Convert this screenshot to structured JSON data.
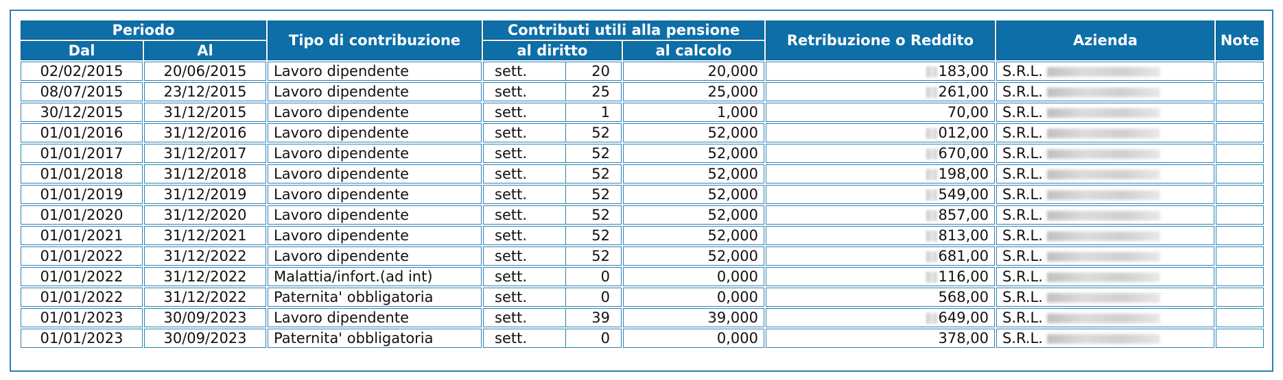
{
  "headers": {
    "periodo": "Periodo",
    "dal": "Dal",
    "al": "Al",
    "tipo": "Tipo di contribuzione",
    "contributi": "Contributi utili alla pensione",
    "al_diritto": "al diritto",
    "al_calcolo": "al calcolo",
    "retribuzione": "Retribuzione o Reddito",
    "azienda": "Azienda",
    "note": "Note"
  },
  "rows": [
    {
      "dal": "02/02/2015",
      "al": "20/06/2015",
      "tipo": "Lavoro dipendente",
      "unita": "sett.",
      "diritto": "20",
      "calcolo": "20,000",
      "retribuzione": "183,00",
      "azienda": "S.R.L.",
      "note": ""
    },
    {
      "dal": "08/07/2015",
      "al": "23/12/2015",
      "tipo": "Lavoro dipendente",
      "unita": "sett.",
      "diritto": "25",
      "calcolo": "25,000",
      "retribuzione": "261,00",
      "azienda": "S.R.L.",
      "note": ""
    },
    {
      "dal": "30/12/2015",
      "al": "31/12/2015",
      "tipo": "Lavoro dipendente",
      "unita": "sett.",
      "diritto": "1",
      "calcolo": "1,000",
      "retribuzione": "70,00",
      "azienda": "S.R.L.",
      "note": ""
    },
    {
      "dal": "01/01/2016",
      "al": "31/12/2016",
      "tipo": "Lavoro dipendente",
      "unita": "sett.",
      "diritto": "52",
      "calcolo": "52,000",
      "retribuzione": "012,00",
      "azienda": "S.R.L.",
      "note": ""
    },
    {
      "dal": "01/01/2017",
      "al": "31/12/2017",
      "tipo": "Lavoro dipendente",
      "unita": "sett.",
      "diritto": "52",
      "calcolo": "52,000",
      "retribuzione": "670,00",
      "azienda": "S.R.L.",
      "note": ""
    },
    {
      "dal": "01/01/2018",
      "al": "31/12/2018",
      "tipo": "Lavoro dipendente",
      "unita": "sett.",
      "diritto": "52",
      "calcolo": "52,000",
      "retribuzione": "198,00",
      "azienda": "S.R.L.",
      "note": ""
    },
    {
      "dal": "01/01/2019",
      "al": "31/12/2019",
      "tipo": "Lavoro dipendente",
      "unita": "sett.",
      "diritto": "52",
      "calcolo": "52,000",
      "retribuzione": "549,00",
      "azienda": "S.R.L.",
      "note": ""
    },
    {
      "dal": "01/01/2020",
      "al": "31/12/2020",
      "tipo": "Lavoro dipendente",
      "unita": "sett.",
      "diritto": "52",
      "calcolo": "52,000",
      "retribuzione": "857,00",
      "azienda": "S.R.L.",
      "note": ""
    },
    {
      "dal": "01/01/2021",
      "al": "31/12/2021",
      "tipo": "Lavoro dipendente",
      "unita": "sett.",
      "diritto": "52",
      "calcolo": "52,000",
      "retribuzione": "813,00",
      "azienda": "S.R.L.",
      "note": ""
    },
    {
      "dal": "01/01/2022",
      "al": "31/12/2022",
      "tipo": "Lavoro dipendente",
      "unita": "sett.",
      "diritto": "52",
      "calcolo": "52,000",
      "retribuzione": "681,00",
      "azienda": "S.R.L.",
      "note": ""
    },
    {
      "dal": "01/01/2022",
      "al": "31/12/2022",
      "tipo": "Malattia/infort.(ad int)",
      "unita": "sett.",
      "diritto": "0",
      "calcolo": "0,000",
      "retribuzione": "116,00",
      "azienda": "S.R.L.",
      "note": ""
    },
    {
      "dal": "01/01/2022",
      "al": "31/12/2022",
      "tipo": "Paternita' obbligatoria",
      "unita": "sett.",
      "diritto": "0",
      "calcolo": "0,000",
      "retribuzione": "568,00",
      "azienda": "S.R.L.",
      "note": ""
    },
    {
      "dal": "01/01/2023",
      "al": "30/09/2023",
      "tipo": "Lavoro dipendente",
      "unita": "sett.",
      "diritto": "39",
      "calcolo": "39,000",
      "retribuzione": "649,00",
      "azienda": "S.R.L.",
      "note": ""
    },
    {
      "dal": "01/01/2023",
      "al": "30/09/2023",
      "tipo": "Paternita' obbligatoria",
      "unita": "sett.",
      "diritto": "0",
      "calcolo": "0,000",
      "retribuzione": "378,00",
      "azienda": "S.R.L.",
      "note": ""
    }
  ],
  "colors": {
    "header_bg": "#0d6ea8",
    "border": "#2a7fb4",
    "section_title": "#0d6ea8"
  }
}
